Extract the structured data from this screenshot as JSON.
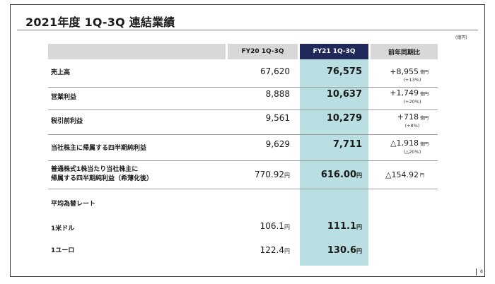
{
  "title": "2021年度 1Q-3Q 連結業績",
  "unit": "(億円)",
  "headers": {
    "col_fy20": "FY20 1Q-3Q",
    "col_fy21": "FY21 1Q-3Q",
    "col_yoy": "前年同期比"
  },
  "colors": {
    "header_gray": "#d8d8d8",
    "header_navy": "#1f2a5a",
    "highlight": "#b9dfe3"
  },
  "rows": [
    {
      "label": "売上高",
      "fy20": "67,620",
      "fy21": "76,575",
      "yoy": "+8,955",
      "yoy_unit": "億円",
      "yoy_pct": "(+13%)"
    },
    {
      "label": "営業利益",
      "fy20": "8,888",
      "fy21": "10,637",
      "yoy": "+1,749",
      "yoy_unit": "億円",
      "yoy_pct": "(+20%)"
    },
    {
      "label": "税引前利益",
      "fy20": "9,561",
      "fy21": "10,279",
      "yoy": "+718",
      "yoy_unit": "億円",
      "yoy_pct": "(+8%)"
    },
    {
      "label": "当社株主に帰属する四半期純利益",
      "fy20": "9,629",
      "fy21": "7,711",
      "yoy": "△1,918",
      "yoy_unit": "億円",
      "yoy_pct": "(△20%)"
    },
    {
      "label_line1": "普通株式1株当たり当社株主に",
      "label_line2": "帰属する四半期純利益（希薄化後）",
      "fy20": "770.92",
      "fy20_unit": "円",
      "fy21": "616.00",
      "fy21_unit": "円",
      "yoy": "△154.92",
      "yoy_unit": "円"
    }
  ],
  "fx_section": "平均為替レート",
  "fx_rows": [
    {
      "label": "1米ドル",
      "fy20": "106.1",
      "fy20_unit": "円",
      "fy21": "111.1",
      "fy21_unit": "円"
    },
    {
      "label": "1ユーロ",
      "fy20": "122.4",
      "fy20_unit": "円",
      "fy21": "130.6",
      "fy21_unit": "円"
    }
  ],
  "page_number": "8"
}
